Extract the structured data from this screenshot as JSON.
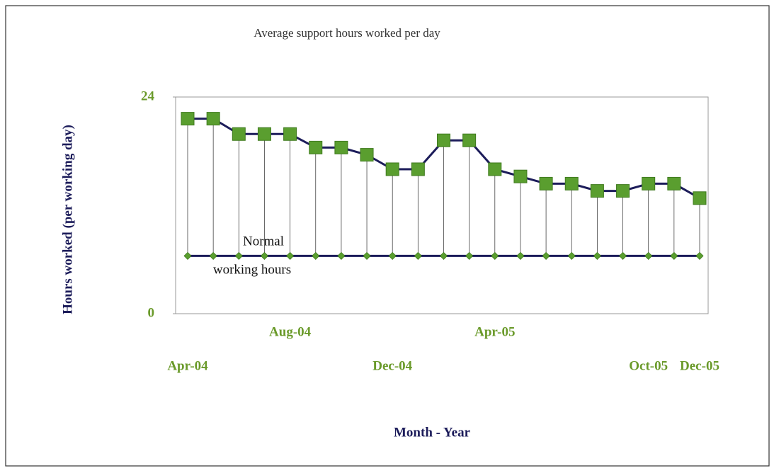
{
  "chart_data": {
    "type": "line",
    "title": "Average support hours worked per day",
    "y_label": "Hours worked (per working day)",
    "x_label": "Month - Year",
    "annotation": [
      "Normal",
      "working hours"
    ],
    "categories": [
      "Apr-04",
      null,
      null,
      null,
      "Aug-04",
      null,
      null,
      null,
      "Dec-04",
      null,
      null,
      null,
      "Apr-05",
      null,
      null,
      null,
      null,
      null,
      "Oct-05",
      null,
      "Dec-05"
    ],
    "series": [
      {
        "color": "#1c1c5a",
        "marker_color": "#5a9e2f",
        "marker": "square",
        "values": [
          21.6,
          21.6,
          19.9,
          19.9,
          19.9,
          18.4,
          18.4,
          17.6,
          16.0,
          16.0,
          19.2,
          19.2,
          16.0,
          15.2,
          14.4,
          14.4,
          13.6,
          13.6,
          14.4,
          14.4,
          12.8
        ]
      },
      {
        "color": "#1c1c5a",
        "marker_color": "#5a9e2f",
        "marker": "diamond",
        "values": [
          6.4,
          6.4,
          6.4,
          6.4,
          6.4,
          6.4,
          6.4,
          6.4,
          6.4,
          6.4,
          6.4,
          6.4,
          6.4,
          6.4,
          6.4,
          6.4,
          6.4,
          6.4,
          6.4,
          6.4,
          6.4
        ]
      }
    ],
    "drop_lines": true,
    "ylim": [
      0,
      24
    ],
    "yticks": [
      0,
      24
    ]
  }
}
